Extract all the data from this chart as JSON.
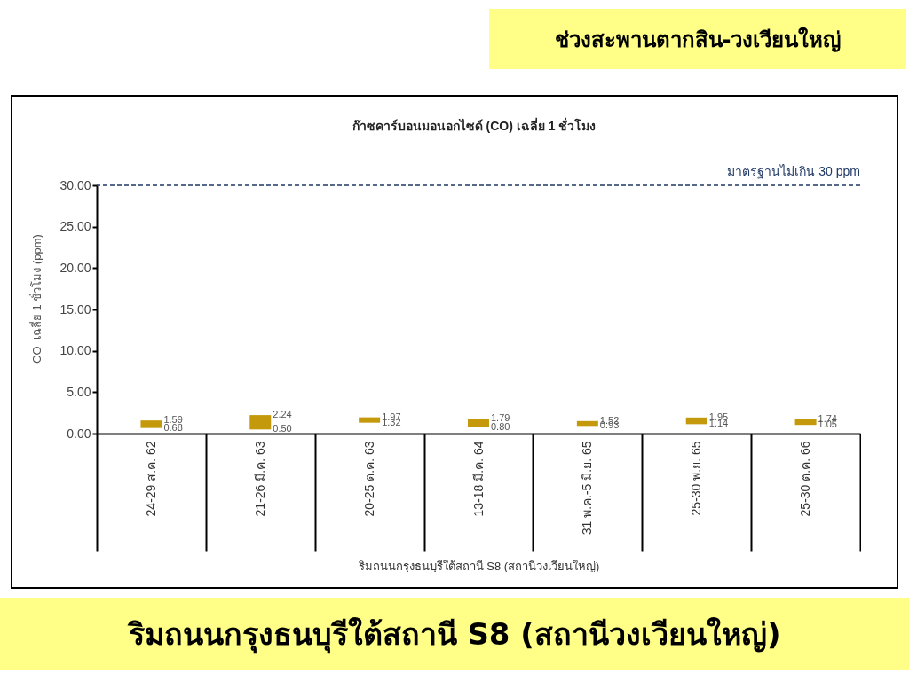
{
  "chart_data": {
    "type": "bar",
    "title": "ก๊าซคาร์บอนมอนอกไซด์ (CO) เฉลี่ย 1 ชั่วโมง",
    "xlabel": "ริมถนนกรุงธนบุรีใต้สถานี S8 (สถานีวงเวียนใหญ่)",
    "ylabel": "CO  เฉลี่ย 1 ชั่วโมง (ppm)",
    "categories": [
      "24-29 ส.ค. 62",
      "21-26 มี.ค. 63",
      "20-25 ต.ค. 63",
      "13-18 มี.ค. 64",
      "31 พ.ค.-5 มิ.ย. 65",
      "25-30 พ.ย. 65",
      "25-30 ต.ค. 66"
    ],
    "base": [
      0.68,
      0.5,
      1.32,
      0.8,
      0.93,
      1.14,
      1.05
    ],
    "values": [
      0.91,
      1.74,
      0.65,
      0.99,
      0.59,
      0.81,
      0.69
    ],
    "color": "#c49a0c",
    "ylim": [
      0,
      30
    ],
    "yticks": [
      {
        "value": 0,
        "label": "0.00"
      },
      {
        "value": 5,
        "label": "5.00"
      },
      {
        "value": 10,
        "label": "10.00"
      },
      {
        "value": 15,
        "label": "15.00"
      },
      {
        "value": 20,
        "label": "20.00"
      },
      {
        "value": 25,
        "label": "25.00"
      },
      {
        "value": 30,
        "label": "30.00"
      }
    ],
    "grid": false,
    "ref_lines": [
      {
        "axis": "y",
        "value": 30,
        "label": "มาตรฐานไม่เกิน 30 ppm",
        "color": "#1f3864",
        "line_style": "dashed"
      }
    ],
    "annotations": [
      "ช่วงสะพานตากสิน-วงเวียนใหญ่",
      "ริมถนนกรุงธนบุรีใต้สถานี S8 (สถานีวงเวียนใหญ่)",
      {
        "text": "1.59",
        "x": "24-29 ส.ค. 62",
        "y": 1.59
      },
      {
        "text": "0.68",
        "x": "24-29 ส.ค. 62",
        "y": 0.68
      },
      {
        "text": "2.24",
        "x": "21-26 มี.ค. 63",
        "y": 2.24
      },
      {
        "text": "0.50",
        "x": "21-26 มี.ค. 63",
        "y": 0.5
      },
      {
        "text": "1.97",
        "x": "20-25 ต.ค. 63",
        "y": 1.97
      },
      {
        "text": "1.32",
        "x": "20-25 ต.ค. 63",
        "y": 1.32
      },
      {
        "text": "1.79",
        "x": "13-18 มี.ค. 64",
        "y": 1.79
      },
      {
        "text": "0.80",
        "x": "13-18 มี.ค. 64",
        "y": 0.8
      },
      {
        "text": "1.52",
        "x": "31 พ.ค.-5 มิ.ย. 65",
        "y": 1.52
      },
      {
        "text": "0.93",
        "x": "31 พ.ค.-5 มิ.ย. 65",
        "y": 0.93
      },
      {
        "text": "1.95",
        "x": "25-30 พ.ย. 65",
        "y": 1.95
      },
      {
        "text": "1.14",
        "x": "25-30 พ.ย. 65",
        "y": 1.14
      },
      {
        "text": "1.74",
        "x": "25-30 ต.ค. 66",
        "y": 1.74
      },
      {
        "text": "1.05",
        "x": "25-30 ต.ค. 66",
        "y": 1.05
      }
    ]
  }
}
